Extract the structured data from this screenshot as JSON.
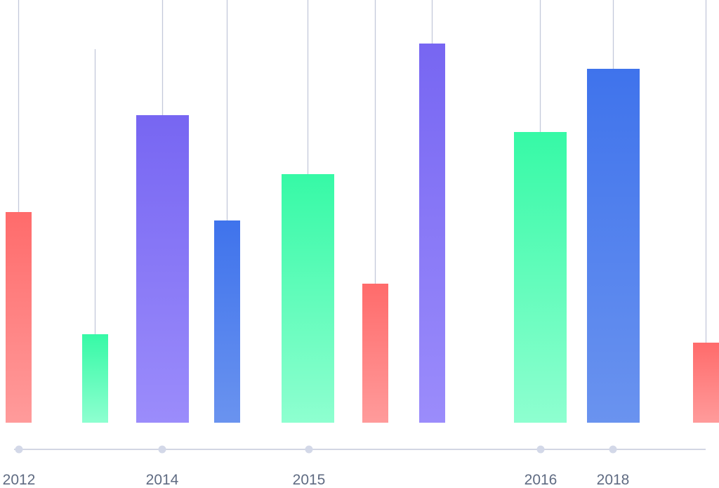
{
  "chart_data": {
    "type": "bar",
    "title": "",
    "xlabel": "",
    "ylabel": "",
    "ylim": [
      0,
      100
    ],
    "grid": false,
    "legend": "none",
    "bars": [
      {
        "value": 50,
        "color": "red"
      },
      {
        "value": 21,
        "color": "green"
      },
      {
        "value": 73,
        "color": "purple"
      },
      {
        "value": 48,
        "color": "blue"
      },
      {
        "value": 59,
        "color": "green"
      },
      {
        "value": 33,
        "color": "red"
      },
      {
        "value": 90,
        "color": "purple"
      },
      {
        "value": 69,
        "color": "green"
      },
      {
        "value": 84,
        "color": "blue"
      },
      {
        "value": 19,
        "color": "red"
      }
    ],
    "timeline_labels": [
      "2012",
      "2014",
      "2015",
      "2016",
      "2018"
    ]
  },
  "colors": {
    "red": [
      "#ff6b6b",
      "#ff9b9b"
    ],
    "green": [
      "#36f9a6",
      "#8effd0"
    ],
    "purple": [
      "#7766f2",
      "#9b8cfb"
    ],
    "blue": [
      "#3f73ec",
      "#6a93ef"
    ],
    "axis": "#c4c9da",
    "dot": "#d3d8e8",
    "label": "#5f6b82"
  }
}
